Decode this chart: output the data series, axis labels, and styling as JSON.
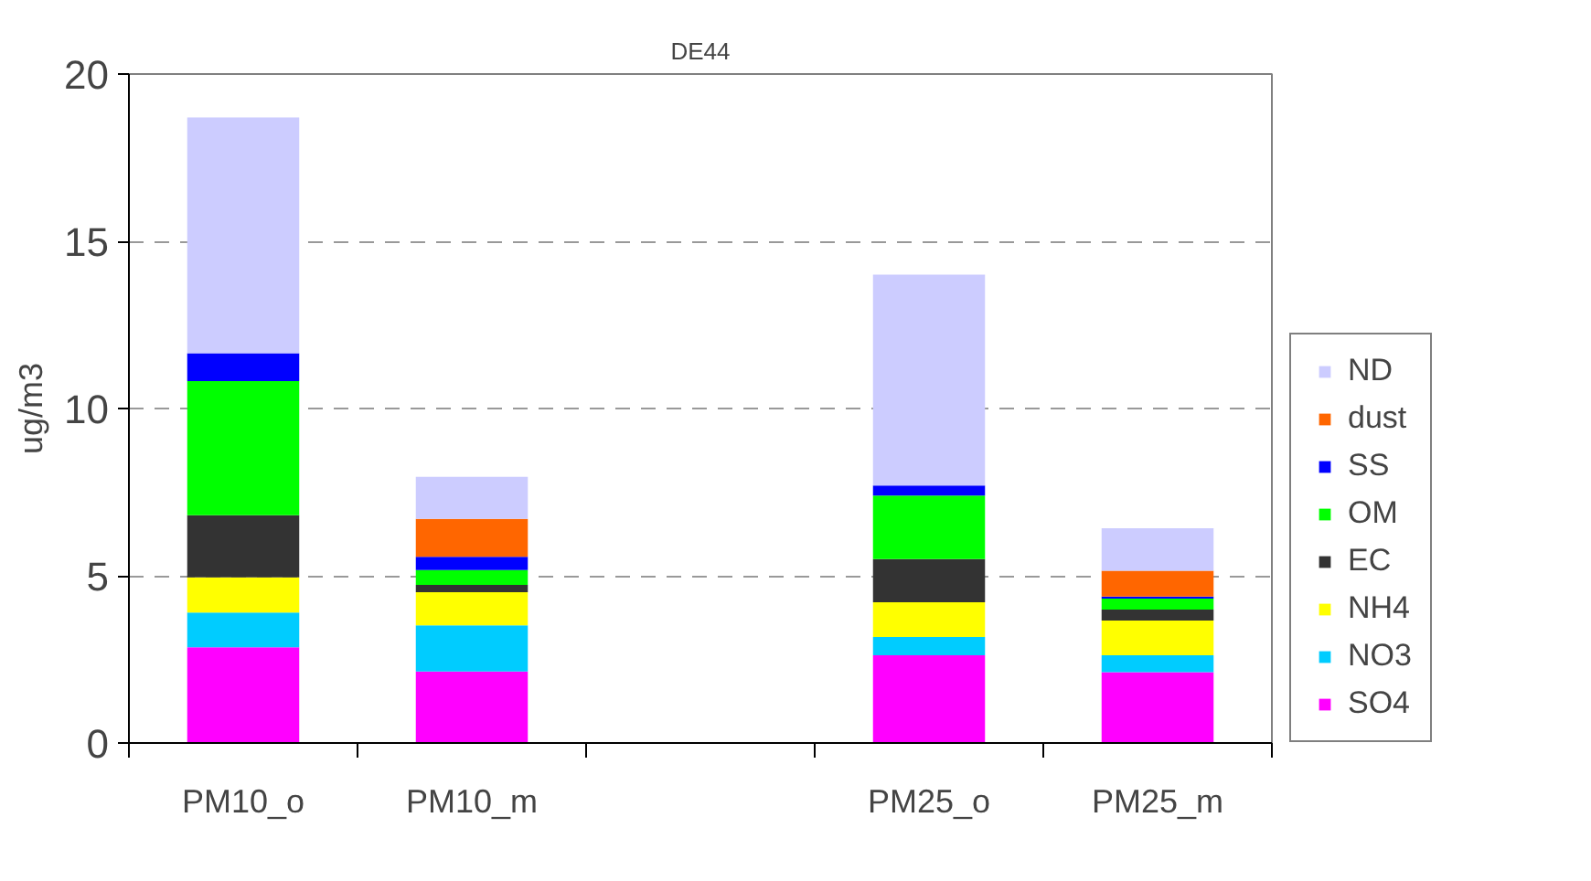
{
  "chart_data": {
    "type": "bar",
    "stacked": true,
    "title": "DE44",
    "ylabel": "ug/m3",
    "categories": [
      "PM10_o",
      "PM10_m",
      null,
      "PM25_o",
      "PM25_m"
    ],
    "series": [
      {
        "name": "SO4",
        "color": "#ff00ff",
        "values": [
          2.86,
          2.14,
          null,
          2.62,
          2.12
        ]
      },
      {
        "name": "NO3",
        "color": "#00ccff",
        "values": [
          1.04,
          1.38,
          null,
          0.55,
          0.5
        ]
      },
      {
        "name": "NH4",
        "color": "#ffff00",
        "values": [
          1.05,
          0.99,
          null,
          1.04,
          1.04
        ]
      },
      {
        "name": "EC",
        "color": "#333333",
        "values": [
          1.86,
          0.22,
          null,
          1.29,
          0.33
        ]
      },
      {
        "name": "OM",
        "color": "#00ff00",
        "values": [
          4.01,
          0.44,
          null,
          1.9,
          0.33
        ]
      },
      {
        "name": "SS",
        "color": "#0000ff",
        "values": [
          0.83,
          0.4,
          null,
          0.3,
          0.06
        ]
      },
      {
        "name": "dust",
        "color": "#ff6600",
        "values": [
          0,
          1.13,
          null,
          0,
          0.77
        ]
      },
      {
        "name": "ND",
        "color": "#ccccff",
        "values": [
          7.05,
          1.26,
          null,
          6.3,
          1.27
        ]
      }
    ],
    "ylim": [
      0,
      20
    ],
    "yticks": [
      0,
      5,
      10,
      15,
      20
    ],
    "grid": "y",
    "legend": "right"
  }
}
